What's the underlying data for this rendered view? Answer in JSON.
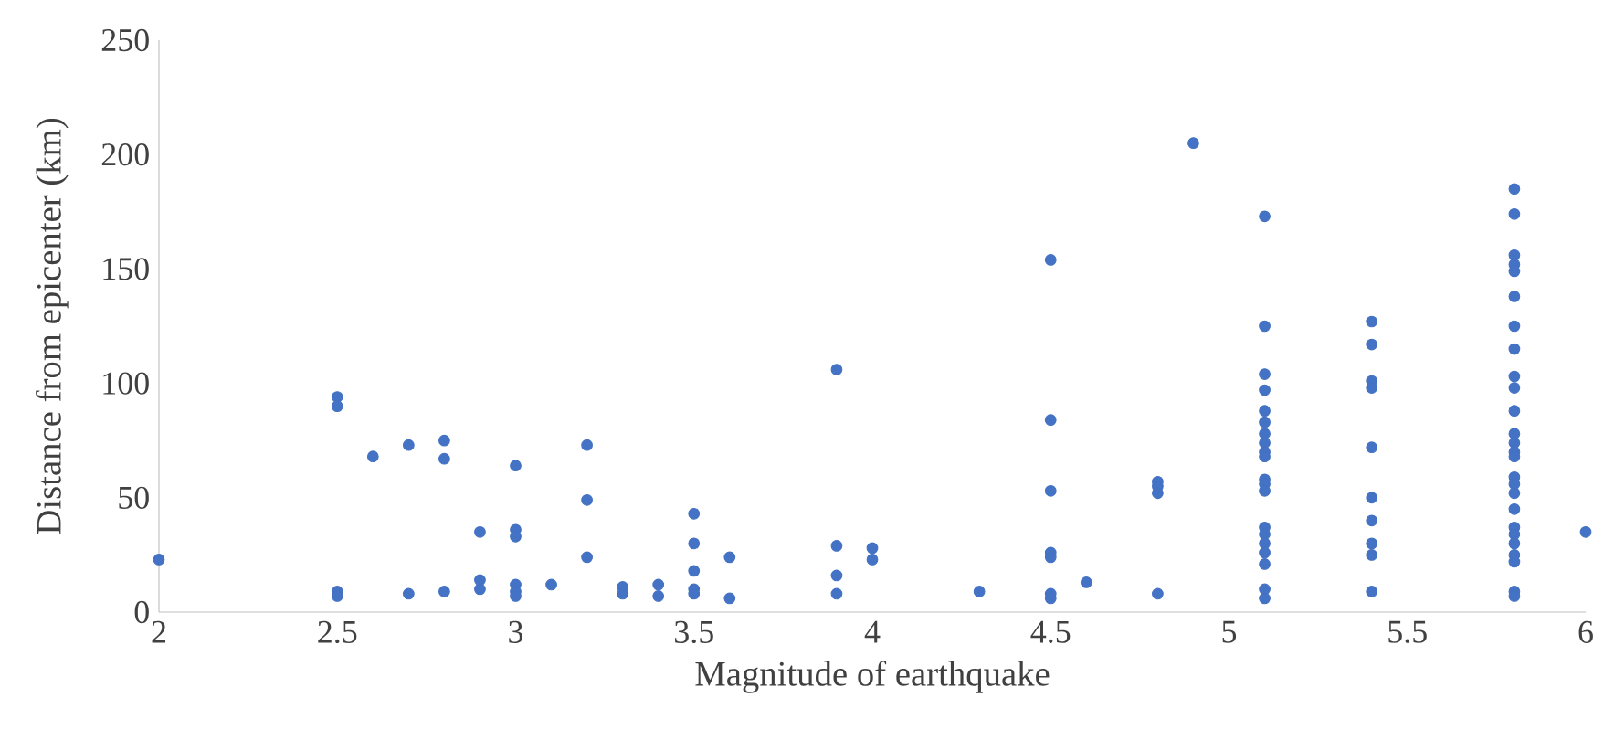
{
  "chart_data": {
    "type": "scatter",
    "xlabel": "Magnitude of earthquake",
    "ylabel": "Distance from epicenter (km)",
    "xlim": [
      2,
      6
    ],
    "ylim": [
      0,
      250
    ],
    "xticks": [
      2,
      2.5,
      3,
      3.5,
      4,
      4.5,
      5,
      5.5,
      6
    ],
    "yticks": [
      0,
      50,
      100,
      150,
      200,
      250
    ],
    "marker": "circle",
    "grid": false,
    "series": [
      {
        "color": "#4472c4",
        "x": [
          2,
          2.5,
          2.5,
          2.5,
          2.5,
          2.6,
          2.7,
          2.7,
          2.8,
          2.8,
          2.8,
          2.9,
          2.9,
          2.9,
          3,
          3,
          3,
          3,
          3,
          3,
          3.1,
          3.2,
          3.2,
          3.2,
          3.3,
          3.3,
          3.4,
          3.4,
          3.5,
          3.5,
          3.5,
          3.5,
          3.5,
          3.6,
          3.6,
          3.9,
          3.9,
          3.9,
          3.9,
          4,
          4,
          4.3,
          4.5,
          4.5,
          4.5,
          4.5,
          4.5,
          4.5,
          4.5,
          4.6,
          4.8,
          4.8,
          4.8,
          4.8,
          4.9,
          5.1,
          5.1,
          5.1,
          5.1,
          5.1,
          5.1,
          5.1,
          5.1,
          5.1,
          5.1,
          5.1,
          5.1,
          5.1,
          5.1,
          5.1,
          5.1,
          5.1,
          5.1,
          5.1,
          5.1,
          5.4,
          5.4,
          5.4,
          5.4,
          5.4,
          5.4,
          5.4,
          5.4,
          5.4,
          5.4,
          5.8,
          5.8,
          5.8,
          5.8,
          5.8,
          5.8,
          5.8,
          5.8,
          5.8,
          5.8,
          5.8,
          5.8,
          5.8,
          5.8,
          5.8,
          5.8,
          5.8,
          5.8,
          5.8,
          5.8,
          5.8,
          5.8,
          5.8,
          5.8,
          5.8,
          5.8,
          6
        ],
        "values": [
          23,
          94,
          90,
          9,
          7,
          68,
          73,
          8,
          75,
          67,
          9,
          35,
          14,
          10,
          64,
          36,
          33,
          12,
          9,
          7,
          12,
          73,
          49,
          24,
          11,
          8,
          12,
          7,
          43,
          30,
          18,
          10,
          8,
          24,
          6,
          106,
          29,
          16,
          8,
          28,
          23,
          9,
          154,
          84,
          53,
          26,
          24,
          8,
          6,
          13,
          57,
          55,
          52,
          8,
          205,
          173,
          125,
          104,
          97,
          88,
          83,
          78,
          74,
          70,
          68,
          58,
          56,
          53,
          37,
          34,
          30,
          26,
          21,
          10,
          6,
          127,
          117,
          101,
          98,
          72,
          50,
          40,
          30,
          25,
          9,
          185,
          174,
          156,
          152,
          149,
          138,
          125,
          115,
          103,
          98,
          88,
          78,
          74,
          70,
          68,
          59,
          56,
          52,
          45,
          37,
          34,
          30,
          25,
          22,
          9,
          7,
          35
        ]
      }
    ]
  }
}
